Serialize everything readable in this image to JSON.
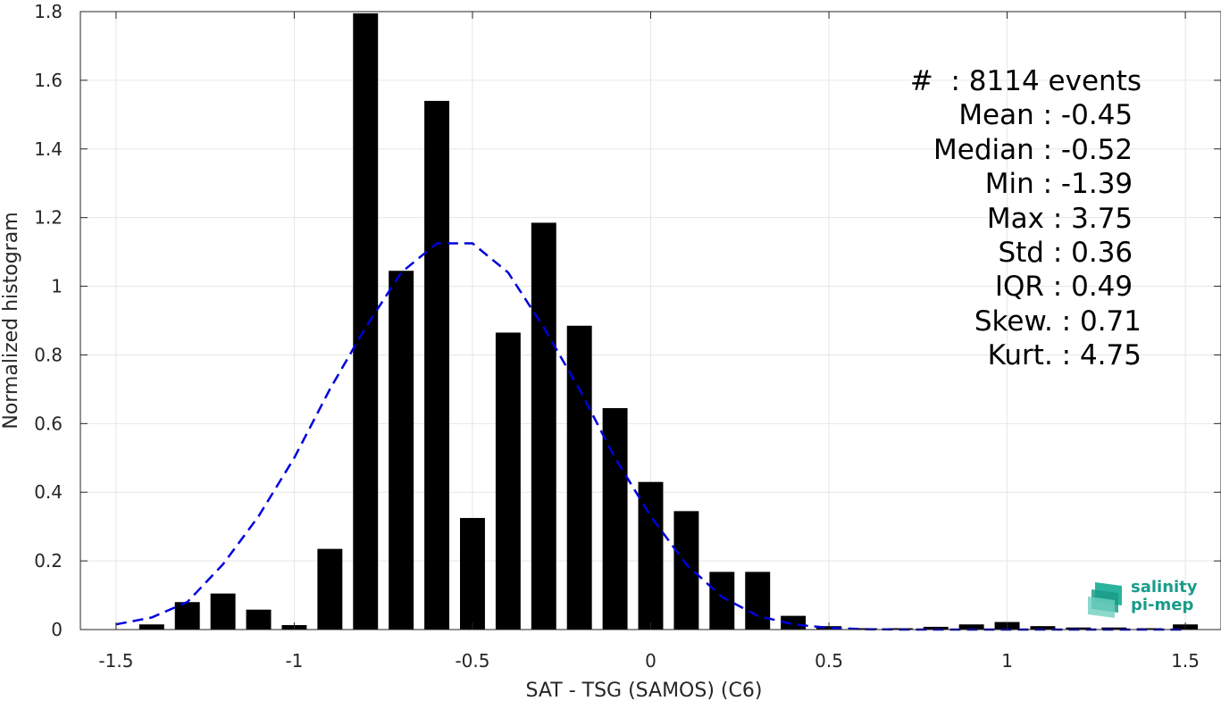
{
  "chart_data": {
    "type": "bar",
    "xlabel": "SAT - TSG (SAMOS) (C6)",
    "ylabel": "Normalized histogram",
    "xlim": [
      -1.6,
      1.6
    ],
    "ylim": [
      0,
      1.8
    ],
    "xticks": [
      -1.5,
      -1,
      -0.5,
      0,
      0.5,
      1,
      1.5
    ],
    "xtick_labels": [
      "-1.5",
      "-1",
      "-0.5",
      "0",
      "0.5",
      "1",
      "1.5"
    ],
    "yticks": [
      0,
      0.2,
      0.4,
      0.6,
      0.8,
      1,
      1.2,
      1.4,
      1.6,
      1.8
    ],
    "ytick_labels": [
      "0",
      "0.2",
      "0.4",
      "0.6",
      "0.8",
      "1",
      "1.2",
      "1.4",
      "1.6",
      "1.8"
    ],
    "grid": true,
    "bar_width": 0.07,
    "bar_color": "#000000",
    "bars": {
      "x": [
        -1.4,
        -1.3,
        -1.2,
        -1.1,
        -1.0,
        -0.9,
        -0.8,
        -0.7,
        -0.6,
        -0.5,
        -0.4,
        -0.3,
        -0.2,
        -0.1,
        0.0,
        0.1,
        0.2,
        0.3,
        0.4,
        0.5,
        0.6,
        0.7,
        0.8,
        0.9,
        1.0,
        1.1,
        1.2,
        1.3,
        1.4,
        1.5
      ],
      "values": [
        0.015,
        0.08,
        0.105,
        0.058,
        0.013,
        0.235,
        1.795,
        1.045,
        1.54,
        0.325,
        0.865,
        1.185,
        0.885,
        0.645,
        0.43,
        0.345,
        0.168,
        0.168,
        0.04,
        0.01,
        0.004,
        0.004,
        0.008,
        0.015,
        0.022,
        0.01,
        0.006,
        0.006,
        0.004,
        0.015
      ]
    },
    "fit": {
      "style": "dashed",
      "color": "#0000dd",
      "x": [
        -1.5,
        -1.4,
        -1.3,
        -1.2,
        -1.1,
        -1.0,
        -0.9,
        -0.8,
        -0.7,
        -0.6,
        -0.5,
        -0.4,
        -0.3,
        -0.2,
        -0.1,
        0.0,
        0.1,
        0.2,
        0.3,
        0.4,
        0.5,
        0.6,
        0.7,
        0.8,
        0.9,
        1.0,
        1.1,
        1.2,
        1.3,
        1.4,
        1.5
      ],
      "values": [
        0.015,
        0.035,
        0.08,
        0.19,
        0.33,
        0.5,
        0.7,
        0.88,
        1.04,
        1.125,
        1.125,
        1.04,
        0.88,
        0.7,
        0.5,
        0.33,
        0.19,
        0.095,
        0.04,
        0.015,
        0.005,
        0.001,
        0,
        0,
        0,
        0,
        0,
        0,
        0,
        0,
        0
      ]
    }
  },
  "stats": [
    "#  : 8114 events",
    "Mean : -0.45 ",
    "Median : -0.52 ",
    "Min : -1.39 ",
    "Max : 3.75 ",
    "Std : 0.36 ",
    "IQR : 0.49 ",
    "Skew. : 0.71",
    "Kurt. : 4.75"
  ],
  "logo": {
    "line1": "salinity",
    "line2": "pi-mep",
    "color": "#1a9c8a"
  }
}
